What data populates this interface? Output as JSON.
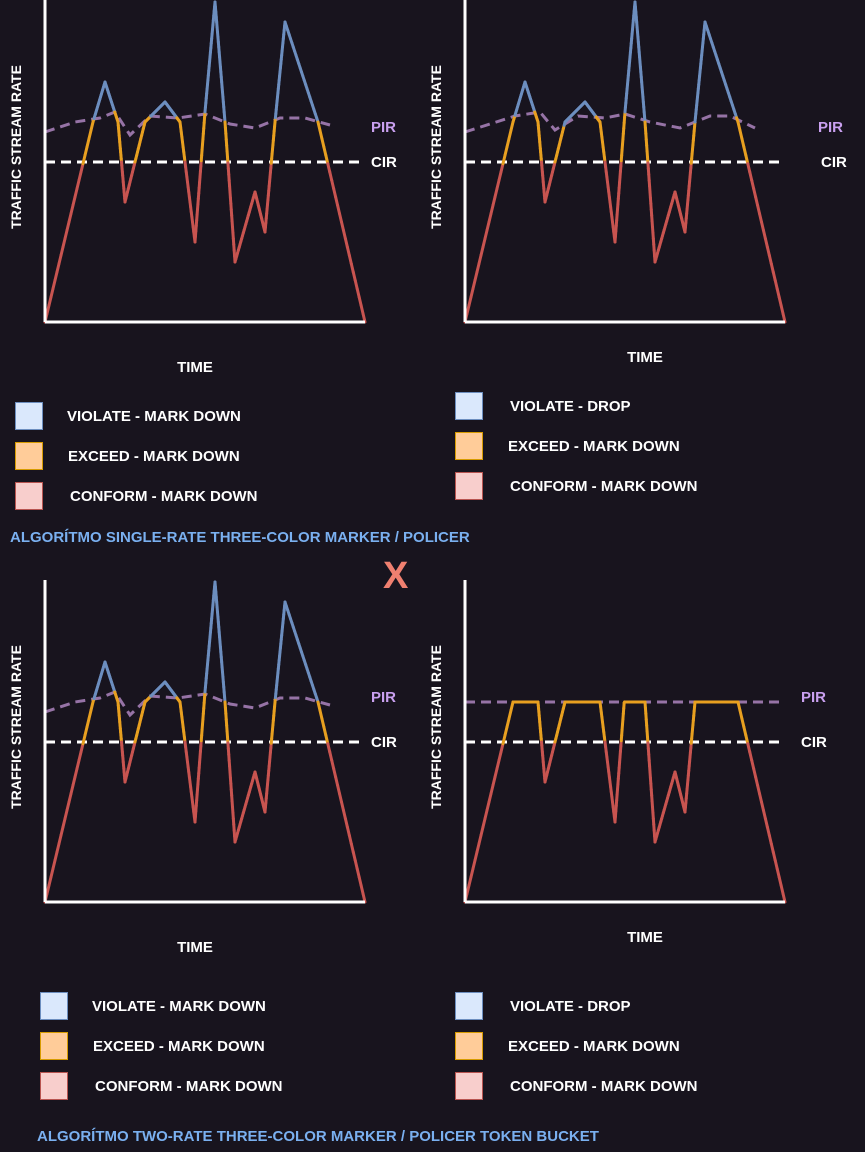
{
  "colors": {
    "violate": "#6c8ebf",
    "exceed": "#e8a020",
    "conform": "#c85450",
    "pir_line": "#9673a6",
    "cir_line": "#ffffff",
    "axis": "#ffffff",
    "caption": "#7ab0f0",
    "separator": "#f08070"
  },
  "separator": "X",
  "sections": [
    {
      "caption": "ALGORÍTMO SINGLE-RATE THREE-COLOR MARKER / POLICER",
      "charts": [
        {
          "ylabel": "TRAFFIC STREAM RATE",
          "xlabel": "TIME",
          "pir_label": "PIR",
          "cir_label": "CIR",
          "pir_style": "wavy",
          "legend": [
            {
              "swatch": "violate",
              "text": "VIOLATE - MARK DOWN"
            },
            {
              "swatch": "exceed",
              "text": "EXCEED - MARK DOWN"
            },
            {
              "swatch": "conform",
              "text": "CONFORM - MARK DOWN"
            }
          ]
        },
        {
          "ylabel": "TRAFFIC STREAM RATE",
          "xlabel": "TIME",
          "pir_label": "PIR",
          "cir_label": "CIR",
          "pir_style": "wavy",
          "legend": [
            {
              "swatch": "violate",
              "text": "VIOLATE - DROP"
            },
            {
              "swatch": "exceed",
              "text": "EXCEED - MARK DOWN"
            },
            {
              "swatch": "conform",
              "text": "CONFORM - MARK DOWN"
            }
          ]
        }
      ]
    },
    {
      "caption": "ALGORÍTMO TWO-RATE THREE-COLOR MARKER / POLICER TOKEN BUCKET",
      "charts": [
        {
          "ylabel": "TRAFFIC STREAM RATE",
          "xlabel": "TIME",
          "pir_label": "PIR",
          "cir_label": "CIR",
          "pir_style": "wavy",
          "legend": [
            {
              "swatch": "violate",
              "text": "VIOLATE - MARK DOWN"
            },
            {
              "swatch": "exceed",
              "text": "EXCEED - MARK DOWN"
            },
            {
              "swatch": "conform",
              "text": "CONFORM - MARK DOWN"
            }
          ]
        },
        {
          "ylabel": "TRAFFIC STREAM RATE",
          "xlabel": "TIME",
          "pir_label": "PIR",
          "cir_label": "CIR",
          "pir_style": "flat",
          "legend": [
            {
              "swatch": "violate",
              "text": "VIOLATE - DROP"
            },
            {
              "swatch": "exceed",
              "text": "EXCEED - MARK DOWN"
            },
            {
              "swatch": "conform",
              "text": "CONFORM - MARK DOWN"
            }
          ]
        }
      ]
    }
  ]
}
